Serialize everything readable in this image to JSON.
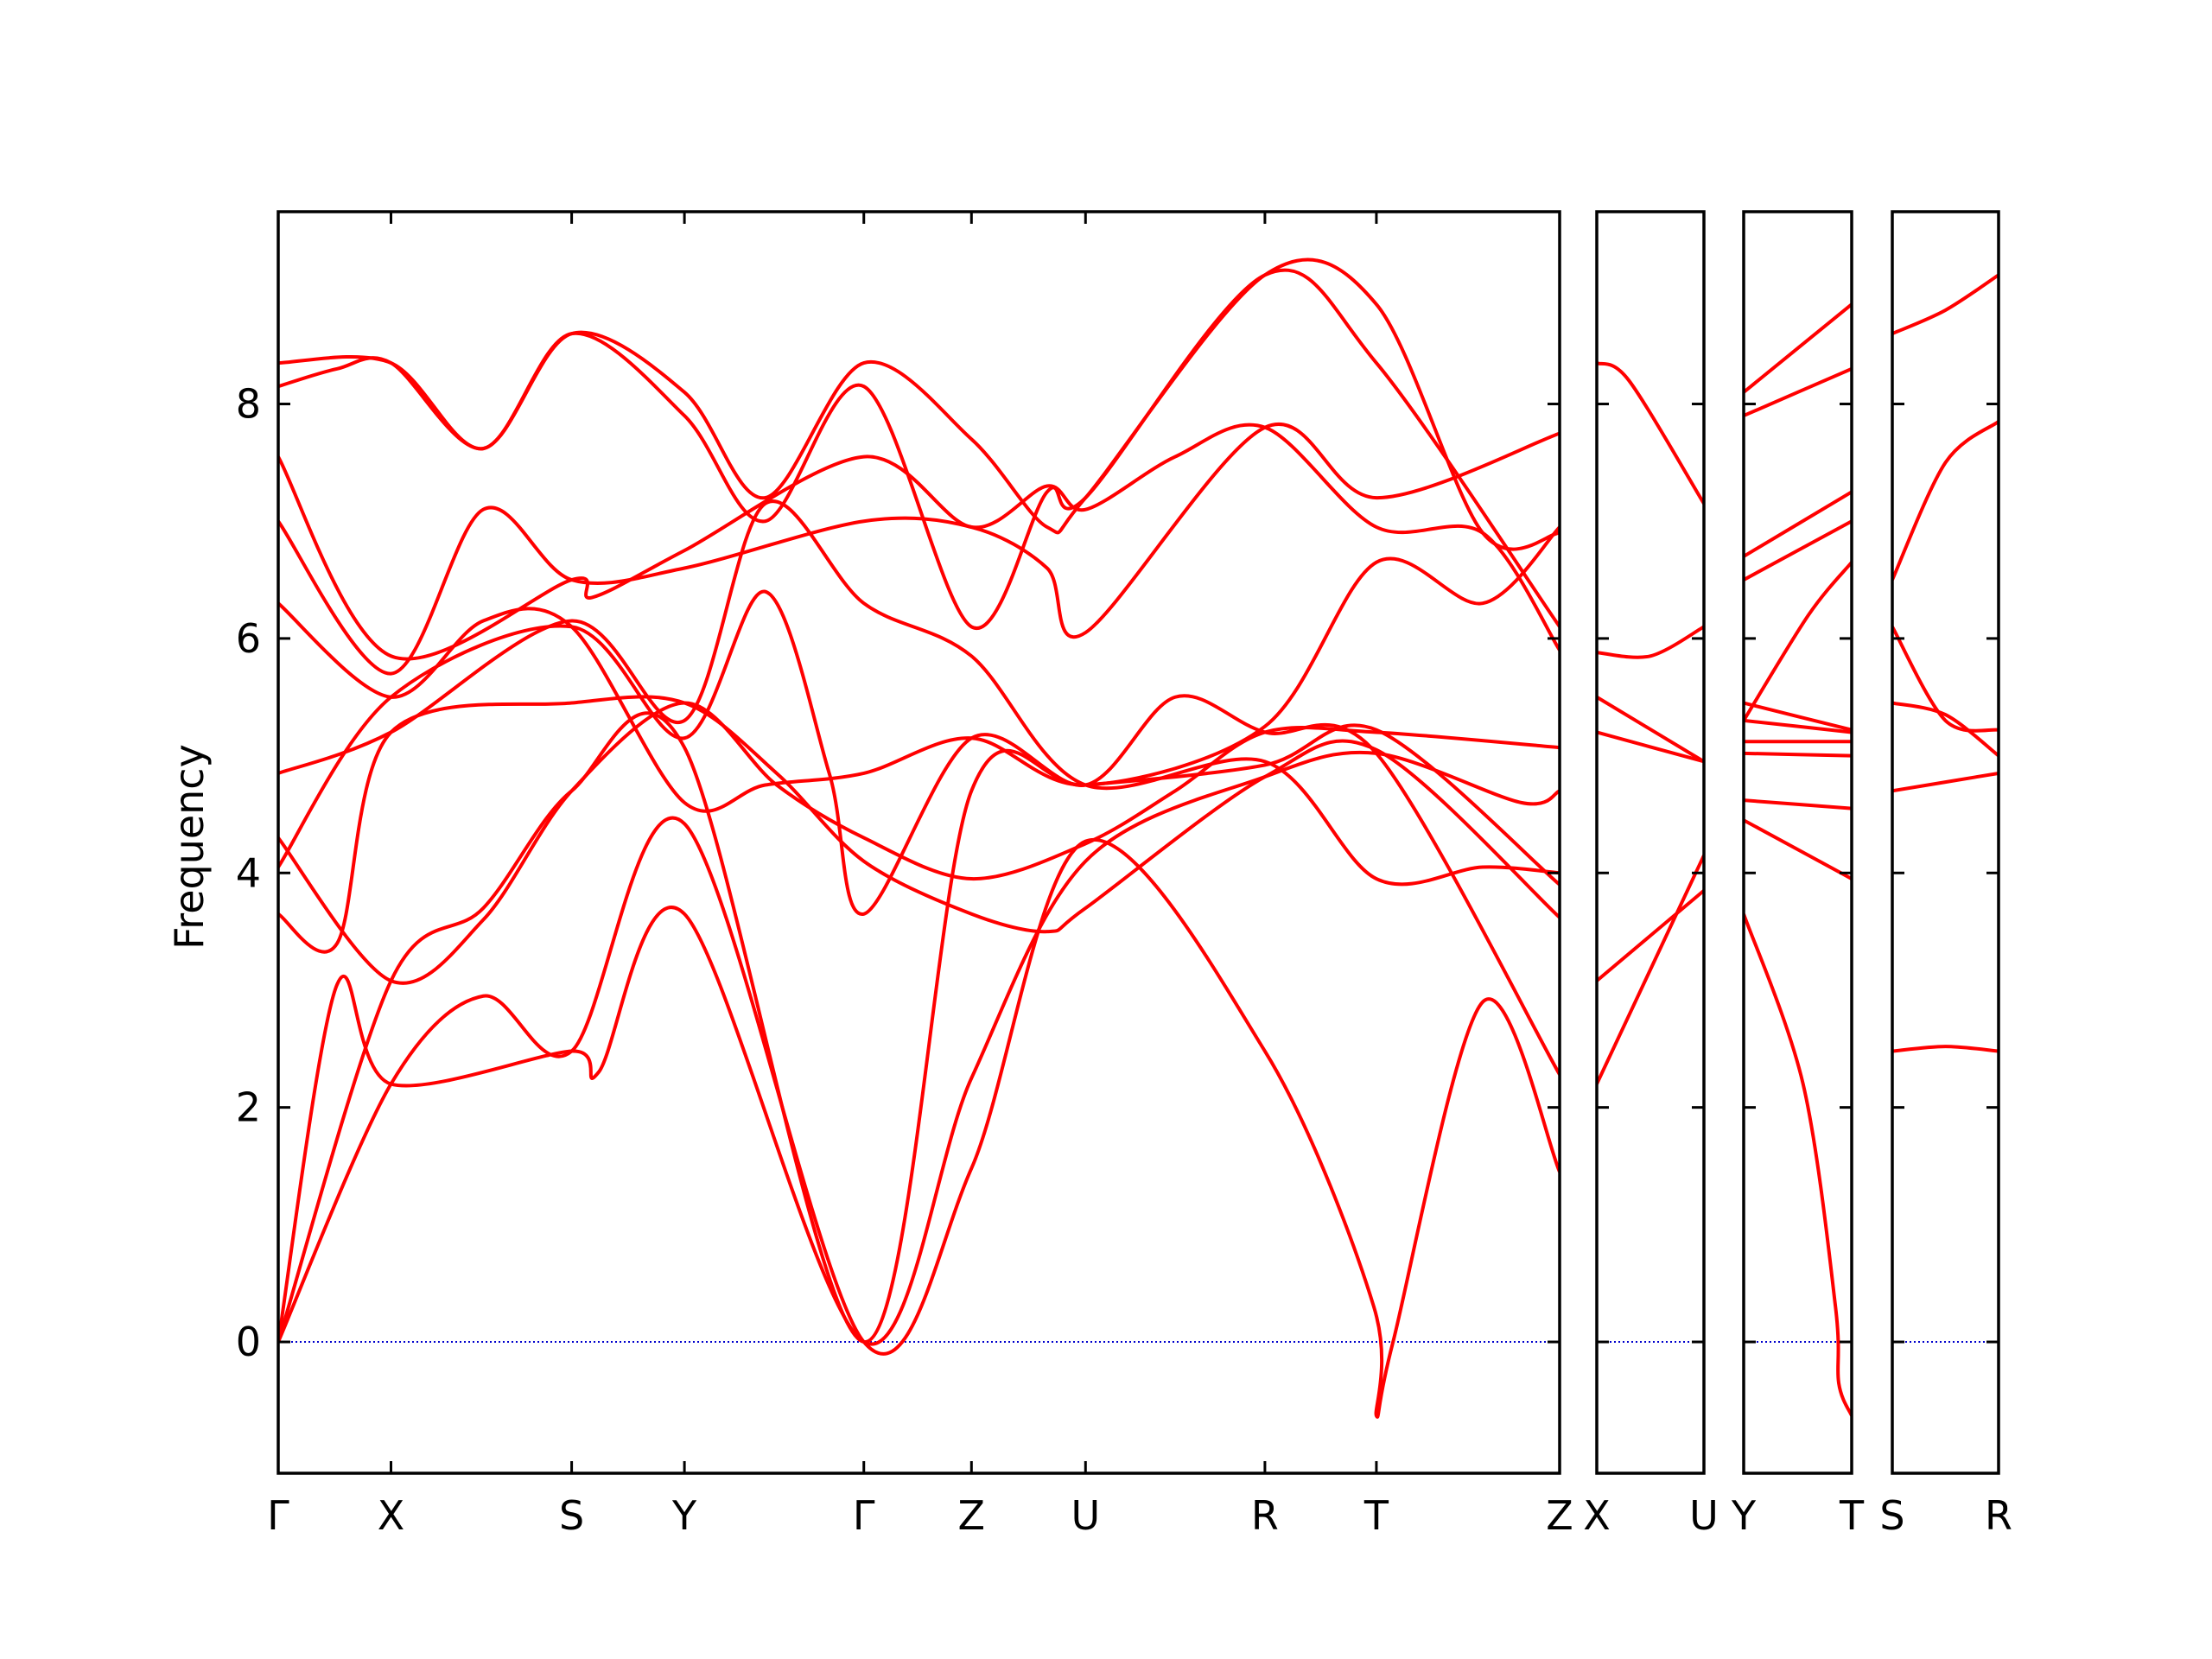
{
  "chart_data": {
    "type": "line",
    "title": "",
    "ylabel": "Frequency",
    "xlabel": "",
    "ylim": [
      -1.12,
      9.64
    ],
    "yticks": [
      0,
      2,
      4,
      6,
      8
    ],
    "grid": false,
    "band_color": "#ff0000",
    "zero_line_color": "#0000cc",
    "panels": [
      {
        "name": "main",
        "labels": [
          "Γ",
          "X",
          "S",
          "Y",
          "Γ",
          "Z",
          "U",
          "R",
          "T",
          "Z"
        ],
        "tick_pos": [
          0,
          0.088,
          0.229,
          0.317,
          0.457,
          0.541,
          0.63,
          0.77,
          0.857,
          1.0
        ],
        "bands": [
          [
            [
              0,
              0
            ],
            [
              0.088,
              2.2
            ],
            [
              0.16,
              2.95
            ],
            [
              0.229,
              2.48
            ],
            [
              0.317,
              4.42
            ],
            [
              0.457,
              0
            ],
            [
              0.541,
              1.48
            ],
            [
              0.63,
              4.27
            ],
            [
              0.77,
              2.48
            ],
            [
              0.855,
              0.3
            ],
            [
              0.857,
              -0.63
            ],
            [
              0.87,
              0.0
            ],
            [
              0.94,
              2.9
            ],
            [
              1.0,
              1.45
            ]
          ],
          [
            [
              0,
              0
            ],
            [
              0.046,
              3.05
            ],
            [
              0.088,
              2.2
            ],
            [
              0.229,
              2.48
            ],
            [
              0.25,
              2.3
            ],
            [
              0.317,
              3.65
            ],
            [
              0.457,
              0
            ],
            [
              0.541,
              2.25
            ],
            [
              0.63,
              4.1
            ],
            [
              0.77,
              4.82
            ],
            [
              0.857,
              5.02
            ],
            [
              0.97,
              4.6
            ],
            [
              1.0,
              4.7
            ]
          ],
          [
            [
              0,
              0
            ],
            [
              0.088,
              3.08
            ],
            [
              0.16,
              3.7
            ],
            [
              0.229,
              4.7
            ],
            [
              0.317,
              5.07
            ],
            [
              0.457,
              0
            ],
            [
              0.541,
              4.7
            ],
            [
              0.63,
              4.75
            ],
            [
              0.77,
              4.92
            ],
            [
              0.857,
              5.22
            ],
            [
              1.0,
              3.9
            ]
          ],
          [
            [
              0,
              4.3
            ],
            [
              0.088,
              3.08
            ],
            [
              0.16,
              3.6
            ],
            [
              0.229,
              4.7
            ],
            [
              0.317,
              5.45
            ],
            [
              0.389,
              4.75
            ],
            [
              0.457,
              4.3
            ],
            [
              0.541,
              3.95
            ],
            [
              0.63,
              4.25
            ],
            [
              0.7,
              4.7
            ],
            [
              0.77,
              5.2
            ],
            [
              0.857,
              5.2
            ],
            [
              1.0,
              5.07
            ]
          ],
          [
            [
              0,
              3.65
            ],
            [
              0.046,
              3.4
            ],
            [
              0.088,
              5.2
            ],
            [
              0.229,
              5.45
            ],
            [
              0.317,
              5.45
            ],
            [
              0.389,
              4.85
            ],
            [
              0.457,
              4.1
            ],
            [
              0.541,
              3.65
            ],
            [
              0.6,
              3.5
            ],
            [
              0.63,
              3.7
            ],
            [
              0.77,
              4.82
            ],
            [
              0.857,
              5.05
            ],
            [
              1.0,
              3.62
            ]
          ],
          [
            [
              0,
              4.05
            ],
            [
              0.088,
              5.5
            ],
            [
              0.229,
              6.1
            ],
            [
              0.317,
              5.15
            ],
            [
              0.38,
              6.4
            ],
            [
              0.43,
              4.85
            ],
            [
              0.457,
              3.65
            ],
            [
              0.541,
              5.15
            ],
            [
              0.63,
              4.75
            ],
            [
              0.7,
              5.5
            ],
            [
              0.77,
              5.2
            ],
            [
              0.857,
              5.02
            ],
            [
              1.0,
              2.28
            ]
          ],
          [
            [
              0,
              4.85
            ],
            [
              0.088,
              5.2
            ],
            [
              0.229,
              6.15
            ],
            [
              0.317,
              5.3
            ],
            [
              0.38,
              7.15
            ],
            [
              0.457,
              6.3
            ],
            [
              0.541,
              5.85
            ],
            [
              0.63,
              4.75
            ],
            [
              0.77,
              4.95
            ],
            [
              0.857,
              3.95
            ],
            [
              0.94,
              4.05
            ],
            [
              1.0,
              4.0
            ]
          ],
          [
            [
              0,
              6.3
            ],
            [
              0.088,
              5.5
            ],
            [
              0.16,
              6.15
            ],
            [
              0.229,
              6.1
            ],
            [
              0.317,
              4.6
            ],
            [
              0.38,
              4.75
            ],
            [
              0.457,
              4.85
            ],
            [
              0.541,
              5.15
            ],
            [
              0.63,
              4.75
            ],
            [
              0.77,
              5.25
            ],
            [
              0.857,
              6.65
            ],
            [
              0.94,
              6.3
            ],
            [
              1.0,
              6.95
            ]
          ],
          [
            [
              0,
              7.0
            ],
            [
              0.088,
              5.7
            ],
            [
              0.16,
              7.1
            ],
            [
              0.229,
              6.5
            ],
            [
              0.317,
              6.6
            ],
            [
              0.457,
              7.0
            ],
            [
              0.541,
              6.95
            ],
            [
              0.6,
              6.6
            ],
            [
              0.63,
              6.05
            ],
            [
              0.77,
              7.8
            ],
            [
              0.857,
              7.2
            ],
            [
              1.0,
              7.75
            ]
          ],
          [
            [
              0,
              7.55
            ],
            [
              0.088,
              5.85
            ],
            [
              0.229,
              6.5
            ],
            [
              0.245,
              6.35
            ],
            [
              0.317,
              6.75
            ],
            [
              0.457,
              7.55
            ],
            [
              0.541,
              6.95
            ],
            [
              0.6,
              7.3
            ],
            [
              0.63,
              7.1
            ],
            [
              0.7,
              7.55
            ],
            [
              0.77,
              7.8
            ],
            [
              0.857,
              6.95
            ],
            [
              0.94,
              6.9
            ],
            [
              1.0,
              5.9
            ]
          ],
          [
            [
              0,
              8.15
            ],
            [
              0.046,
              8.3
            ],
            [
              0.088,
              8.35
            ],
            [
              0.16,
              7.62
            ],
            [
              0.229,
              8.6
            ],
            [
              0.317,
              7.9
            ],
            [
              0.38,
              7.0
            ],
            [
              0.457,
              8.15
            ],
            [
              0.541,
              6.1
            ],
            [
              0.6,
              7.25
            ],
            [
              0.63,
              7.2
            ],
            [
              0.77,
              9.1
            ],
            [
              0.857,
              8.35
            ],
            [
              1.0,
              6.1
            ]
          ],
          [
            [
              0,
              8.35
            ],
            [
              0.088,
              8.35
            ],
            [
              0.16,
              7.62
            ],
            [
              0.229,
              8.6
            ],
            [
              0.317,
              8.1
            ],
            [
              0.38,
              7.2
            ],
            [
              0.457,
              8.35
            ],
            [
              0.541,
              7.7
            ],
            [
              0.6,
              6.95
            ],
            [
              0.63,
              7.2
            ],
            [
              0.77,
              9.1
            ],
            [
              0.857,
              8.85
            ],
            [
              0.94,
              6.9
            ],
            [
              1.0,
              6.9
            ]
          ]
        ]
      },
      {
        "name": "X-U",
        "labels": [
          "X",
          "U"
        ],
        "tick_pos": [
          0,
          1
        ],
        "bands": [
          [
            [
              0,
              2.2
            ],
            [
              1,
              4.15
            ]
          ],
          [
            [
              0,
              3.08
            ],
            [
              1,
              3.85
            ]
          ],
          [
            [
              0,
              5.2
            ],
            [
              1,
              4.95
            ]
          ],
          [
            [
              0,
              5.5
            ],
            [
              1,
              4.95
            ]
          ],
          [
            [
              0,
              5.88
            ],
            [
              0.5,
              5.85
            ],
            [
              1,
              6.1
            ]
          ],
          [
            [
              0,
              8.35
            ],
            [
              0.3,
              8.2
            ],
            [
              1,
              7.15
            ]
          ]
        ]
      },
      {
        "name": "Y-T",
        "labels": [
          "Y",
          "T"
        ],
        "tick_pos": [
          0,
          1
        ],
        "bands": [
          [
            [
              0,
              3.65
            ],
            [
              0.55,
              2.2
            ],
            [
              0.85,
              0.3
            ],
            [
              0.88,
              -0.35
            ],
            [
              1,
              -0.63
            ]
          ],
          [
            [
              0,
              4.45
            ],
            [
              1,
              3.95
            ]
          ],
          [
            [
              0,
              4.62
            ],
            [
              1,
              4.55
            ]
          ],
          [
            [
              0,
              5.02
            ],
            [
              1,
              5.0
            ]
          ],
          [
            [
              0,
              5.12
            ],
            [
              1,
              5.12
            ]
          ],
          [
            [
              0,
              5.3
            ],
            [
              1,
              5.2
            ]
          ],
          [
            [
              0,
              5.45
            ],
            [
              1,
              5.22
            ]
          ],
          [
            [
              0,
              6.5
            ],
            [
              1,
              7.0
            ]
          ],
          [
            [
              0,
              6.7
            ],
            [
              1,
              7.25
            ]
          ],
          [
            [
              0,
              7.9
            ],
            [
              1,
              8.3
            ]
          ],
          [
            [
              0,
              8.1
            ],
            [
              1,
              8.85
            ]
          ],
          [
            [
              0,
              5.3
            ],
            [
              0.6,
              6.2
            ],
            [
              1,
              6.65
            ]
          ]
        ]
      },
      {
        "name": "S-R",
        "labels": [
          "S",
          "R"
        ],
        "tick_pos": [
          0,
          1
        ],
        "bands": [
          [
            [
              0,
              2.48
            ],
            [
              0.5,
              2.52
            ],
            [
              1,
              2.48
            ]
          ],
          [
            [
              0,
              4.7
            ],
            [
              1,
              4.85
            ]
          ],
          [
            [
              0,
              5.45
            ],
            [
              0.5,
              5.35
            ],
            [
              1,
              5.0
            ]
          ],
          [
            [
              0,
              6.1
            ],
            [
              0.5,
              5.3
            ],
            [
              1,
              5.22
            ]
          ],
          [
            [
              0,
              6.5
            ],
            [
              0.5,
              7.5
            ],
            [
              1,
              7.85
            ]
          ],
          [
            [
              0,
              8.6
            ],
            [
              0.5,
              8.8
            ],
            [
              1,
              9.1
            ]
          ]
        ]
      }
    ]
  }
}
